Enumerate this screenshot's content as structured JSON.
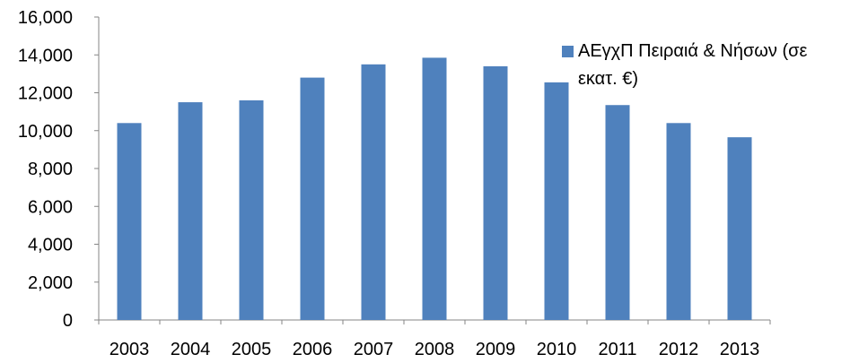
{
  "chart_data": {
    "type": "bar",
    "categories": [
      "2003",
      "2004",
      "2005",
      "2006",
      "2007",
      "2008",
      "2009",
      "2010",
      "2011",
      "2012",
      "2013"
    ],
    "series": [
      {
        "name": "ΑΕγχΠ Πειραιά & Νήσων (σε εκατ. €)",
        "values": [
          10400,
          11500,
          11600,
          12800,
          13500,
          13850,
          13400,
          12550,
          11350,
          10400,
          9650
        ],
        "color": "#4F81BD"
      }
    ],
    "y_ticks": [
      "0",
      "2,000",
      "4,000",
      "6,000",
      "8,000",
      "10,000",
      "12,000",
      "14,000",
      "16,000"
    ],
    "ylim": [
      0,
      16000
    ],
    "grid": false,
    "legend_position": "right"
  }
}
